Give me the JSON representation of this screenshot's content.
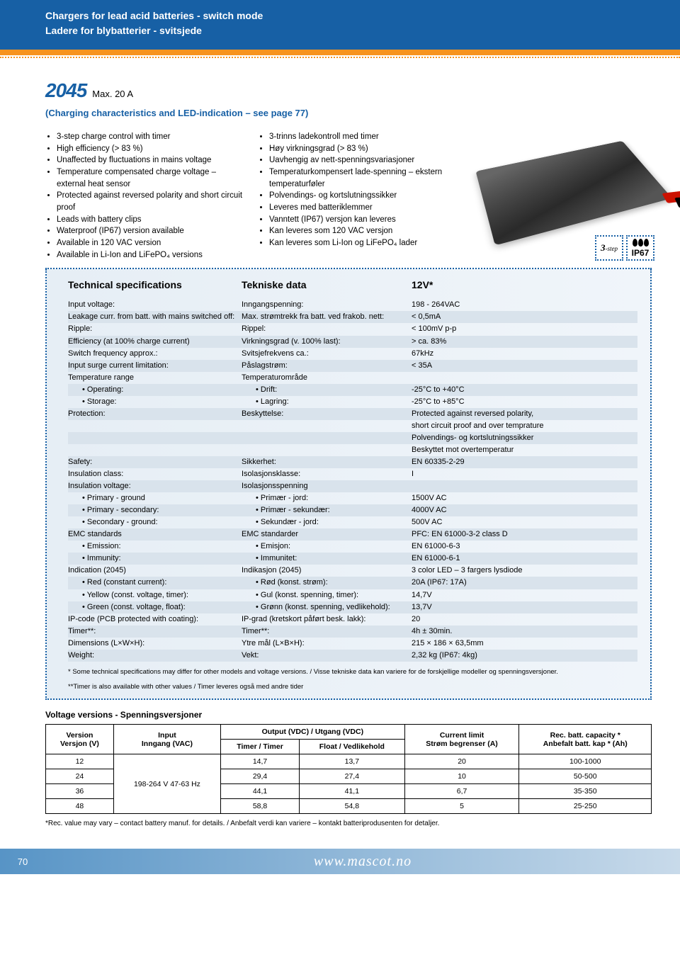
{
  "header": {
    "line1": "Chargers for lead acid batteries - switch mode",
    "line2": "Ladere for blybatterier - svitsjede"
  },
  "model": {
    "number": "2045",
    "sub": "Max. 20 A",
    "see_page": "(Charging characteristics and LED-indication – see page 77)"
  },
  "features_en": [
    "3-step charge control with timer",
    "High efficiency (> 83 %)",
    "Unaffected by fluctuations in mains voltage",
    "Temperature compensated charge voltage – external heat sensor",
    "Protected against reversed polarity and short circuit proof",
    "Leads with battery clips",
    "Waterproof (IP67) version available",
    "Available in 120 VAC version",
    "Available in Li-Ion and LiFePO₄ versions"
  ],
  "features_no": [
    "3-trinns ladekontroll med timer",
    "Høy virkningsgrad (> 83 %)",
    "Uavhengig av nett-spenningsvariasjoner",
    "Temperaturkompensert lade-spenning – ekstern temperaturføler",
    "Polvendings- og kortslutningssikker",
    "Leveres med batteriklemmer",
    "Vanntett (IP67) versjon kan leveres",
    "Kan leveres som 120 VAC versjon",
    "Kan leveres som Li-Ion og LiFePO₄ lader"
  ],
  "badges": {
    "step": "3",
    "step_label": "-step",
    "ip": "IP67"
  },
  "spec_headers": {
    "c1": "Technical specifications",
    "c2": "Tekniske data",
    "c3": "12V*"
  },
  "specs": [
    {
      "c1": "Input voltage:",
      "c2": "Inngangspenning:",
      "c3": "198 - 264VAC",
      "shade": 0
    },
    {
      "c1": "Leakage curr. from batt. with mains switched off:",
      "c2": "Max. strømtrekk fra batt. ved frakob. nett:",
      "c3": "< 0,5mA",
      "shade": 1
    },
    {
      "c1": "Ripple:",
      "c2": "Rippel:",
      "c3": "< 100mV p-p",
      "shade": 0
    },
    {
      "c1": "Efficiency (at 100% charge current)",
      "c2": "Virkningsgrad (v. 100% last):",
      "c3": "> ca. 83%",
      "shade": 1
    },
    {
      "c1": "Switch frequency approx.:",
      "c2": "Svitsjefrekvens ca.:",
      "c3": "67kHz",
      "shade": 0
    },
    {
      "c1": "Input surge current limitation:",
      "c2": "Påslagstrøm:",
      "c3": "< 35A",
      "shade": 1
    },
    {
      "c1": "Temperature range",
      "c2": "Temperaturområde",
      "c3": "",
      "shade": 0
    },
    {
      "c1": "• Operating:",
      "c2": "• Drift:",
      "c3": "-25°C to +40°C",
      "shade": 1,
      "indent": 1
    },
    {
      "c1": "• Storage:",
      "c2": "• Lagring:",
      "c3": "-25°C to +85°C",
      "shade": 0,
      "indent": 1
    },
    {
      "c1": "Protection:",
      "c2": "Beskyttelse:",
      "c3": "Protected against reversed polarity,",
      "shade": 1
    },
    {
      "c1": "",
      "c2": "",
      "c3": "short circuit proof and over temprature",
      "shade": 0
    },
    {
      "c1": "",
      "c2": "",
      "c3": "Polvendings- og kortslutningssikker",
      "shade": 1
    },
    {
      "c1": "",
      "c2": "",
      "c3": "Beskyttet mot overtemperatur",
      "shade": 0
    },
    {
      "c1": "Safety:",
      "c2": "Sikkerhet:",
      "c3": "EN 60335-2-29",
      "shade": 1
    },
    {
      "c1": "Insulation class:",
      "c2": "Isolasjonsklasse:",
      "c3": "I",
      "shade": 0
    },
    {
      "c1": "Insulation voltage:",
      "c2": "Isolasjonsspenning",
      "c3": "",
      "shade": 1
    },
    {
      "c1": "• Primary - ground",
      "c2": "• Primær - jord:",
      "c3": "1500V AC",
      "shade": 0,
      "indent": 1
    },
    {
      "c1": "• Primary - secondary:",
      "c2": "• Primær - sekundær:",
      "c3": "4000V AC",
      "shade": 1,
      "indent": 1
    },
    {
      "c1": "• Secondary - ground:",
      "c2": "• Sekundær - jord:",
      "c3": "500V AC",
      "shade": 0,
      "indent": 1
    },
    {
      "c1": "EMC standards",
      "c2": "EMC standarder",
      "c3": "PFC: EN 61000-3-2 class D",
      "shade": 1
    },
    {
      "c1": "• Emission:",
      "c2": "• Emisjon:",
      "c3": "EN 61000-6-3",
      "shade": 0,
      "indent": 1
    },
    {
      "c1": "• Immunity:",
      "c2": "• Immunitet:",
      "c3": "EN 61000-6-1",
      "shade": 1,
      "indent": 1
    },
    {
      "c1": "Indication (2045)",
      "c2": "Indikasjon (2045)",
      "c3": "3 color LED – 3 fargers lysdiode",
      "shade": 0
    },
    {
      "c1": "• Red (constant current):",
      "c2": "• Rød (konst. strøm):",
      "c3": "20A (IP67: 17A)",
      "shade": 1,
      "indent": 1
    },
    {
      "c1": "• Yellow (const. voltage, timer):",
      "c2": "• Gul (konst. spenning, timer):",
      "c3": "14,7V",
      "shade": 0,
      "indent": 1
    },
    {
      "c1": "• Green (const. voltage, float):",
      "c2": "• Grønn (konst. spenning, vedlikehold):",
      "c3": "13,7V",
      "shade": 1,
      "indent": 1
    },
    {
      "c1": "IP-code (PCB protected with coating):",
      "c2": "IP-grad (kretskort påført besk. lakk):",
      "c3": "20",
      "shade": 0
    },
    {
      "c1": "Timer**:",
      "c2": "Timer**:",
      "c3": "4h ± 30min.",
      "shade": 1
    },
    {
      "c1": "Dimensions (L×W×H):",
      "c2": "Ytre mål (L×B×H):",
      "c3": "215 × 186 × 63,5mm",
      "shade": 0
    },
    {
      "c1": "Weight:",
      "c2": "Vekt:",
      "c3": "2,32 kg (IP67: 4kg)",
      "shade": 1
    }
  ],
  "spec_footnote1": "* Some technical specifications may differ for other models and voltage versions. / Visse tekniske data kan variere for de forskjellige modeller og spenningsversjoner.",
  "spec_footnote2": "**Timer is also available with other values / Timer leveres også med andre tider",
  "vv_title": "Voltage versions - Spenningsversjoner",
  "vv": {
    "head1": {
      "version": "Version",
      "input": "Input",
      "output": "Output (VDC) / Utgang (VDC)",
      "current": "Current limit",
      "rec": "Rec. batt. capacity *"
    },
    "head2": {
      "version": "Versjon (V)",
      "input": "Inngang (VAC)",
      "timer": "Timer / Timer",
      "float": "Float / Vedlikehold",
      "current": "Strøm begrenser (A)",
      "rec": "Anbefalt batt. kap * (Ah)"
    },
    "input_merged": "198-264 V 47-63 Hz",
    "rows": [
      {
        "v": "12",
        "timer": "14,7",
        "float": "13,7",
        "cur": "20",
        "rec": "100-1000"
      },
      {
        "v": "24",
        "timer": "29,4",
        "float": "27,4",
        "cur": "10",
        "rec": "50-500"
      },
      {
        "v": "36",
        "timer": "44,1",
        "float": "41,1",
        "cur": "6,7",
        "rec": "35-350"
      },
      {
        "v": "48",
        "timer": "58,8",
        "float": "54,8",
        "cur": "5",
        "rec": "25-250"
      }
    ]
  },
  "vv_foot": "*Rec. value may vary – contact battery manuf. for details. / Anbefalt verdi kan variere – kontakt batteriprodusenten for detaljer.",
  "footer": {
    "page": "70",
    "url": "www.mascot.no"
  }
}
